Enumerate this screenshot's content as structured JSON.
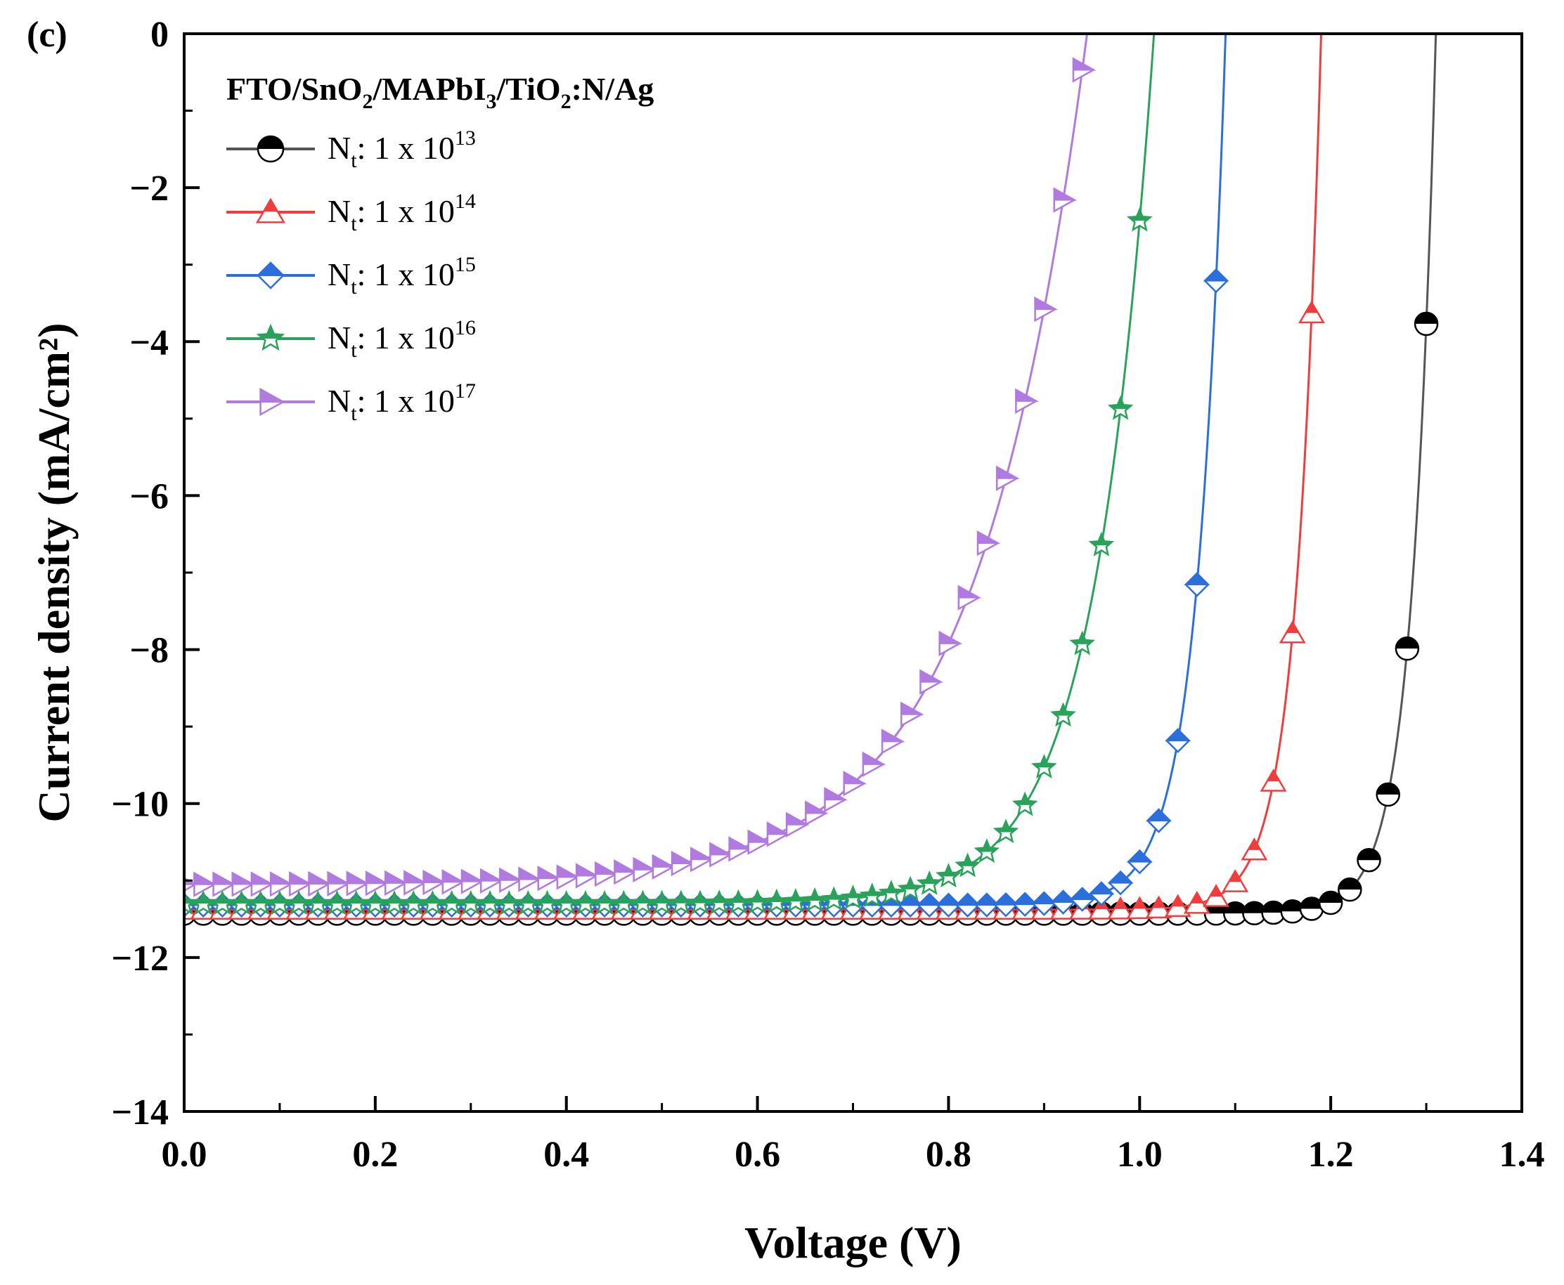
{
  "panel_label": "(c)",
  "legend_title": {
    "parts": [
      {
        "t": "FTO/SnO",
        "s": ""
      },
      {
        "t": "2",
        "s": "sub"
      },
      {
        "t": "/MAPbI",
        "s": ""
      },
      {
        "t": "3",
        "s": "sub"
      },
      {
        "t": "/TiO",
        "s": ""
      },
      {
        "t": "2",
        "s": "sub"
      },
      {
        "t": ":N/Ag",
        "s": ""
      }
    ]
  },
  "chart_data": {
    "type": "line",
    "title": "FTO/SnO2/MAPbI3/TiO2:N/Ag",
    "xlabel": "Voltage (V)",
    "ylabel": "Current density (mA/cm²)",
    "xlim": [
      0.0,
      1.4
    ],
    "ylim": [
      -14,
      0
    ],
    "xticks": [
      0.0,
      0.2,
      0.4,
      0.6,
      0.8,
      1.0,
      1.2,
      1.4
    ],
    "xtick_labels": [
      "0.0",
      "0.2",
      "0.4",
      "0.6",
      "0.8",
      "1.0",
      "1.2",
      "1.4"
    ],
    "yticks": [
      0,
      -2,
      -4,
      -6,
      -8,
      -10,
      -12,
      -14
    ],
    "ytick_labels": [
      "0",
      "−2",
      "−4",
      "−6",
      "−8",
      "−10",
      "−12",
      "−14"
    ],
    "legend_position": "top-left",
    "series": [
      {
        "name": "N_t: 1 x 10^13",
        "label_main": "N",
        "label_sub": "t",
        "label_mid": ": 1 x 10",
        "label_sup": "13",
        "color": "#555555",
        "marker_fill": "#000000",
        "marker": "half-circle",
        "jsc": 11.43,
        "voc": 1.31,
        "ideality": 0.025
      },
      {
        "name": "N_t: 1 x 10^14",
        "label_main": "N",
        "label_sub": "t",
        "label_mid": ": 1 x 10",
        "label_sup": "14",
        "color": "#f03c3c",
        "marker_fill": "#f03c3c",
        "marker": "half-triangle-up",
        "jsc": 11.38,
        "voc": 1.19,
        "ideality": 0.026
      },
      {
        "name": "N_t: 1 x 10^15",
        "label_main": "N",
        "label_sub": "t",
        "label_mid": ": 1 x 10",
        "label_sup": "15",
        "color": "#2a6fdb",
        "marker_fill": "#2a6fdb",
        "marker": "half-diamond",
        "jsc": 11.32,
        "voc": 1.09,
        "ideality": 0.03
      },
      {
        "name": "N_t: 1 x 10^16",
        "label_main": "N",
        "label_sub": "t",
        "label_mid": ": 1 x 10",
        "label_sup": "16",
        "color": "#2aa35a",
        "marker_fill": "#2aa35a",
        "marker": "half-star",
        "jsc": 11.3,
        "voc": 1.015,
        "ideality": 0.062
      },
      {
        "name": "N_t: 1 x 10^17",
        "label_main": "N",
        "label_sub": "t",
        "label_mid": ": 1 x 10",
        "label_sup": "17",
        "color": "#b07ae0",
        "marker_fill": "#b07ae0",
        "marker": "half-triangle-right",
        "jsc": 11.05,
        "voc": 0.945,
        "ideality": 0.115
      }
    ]
  }
}
